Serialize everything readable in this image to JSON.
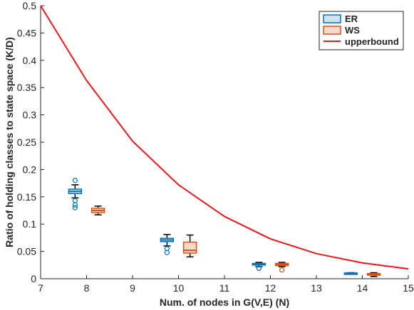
{
  "chart_data": {
    "type": "box+line",
    "xlabel": "Num. of nodes in G(V,E) (N)",
    "ylabel": "Ratio of holding classes to state space (K/D)",
    "xlim": [
      7,
      15
    ],
    "ylim": [
      0,
      0.5
    ],
    "xticks": [
      "7",
      "8",
      "9",
      "10",
      "11",
      "12",
      "13",
      "14",
      "15"
    ],
    "yticks": [
      "0",
      "0.05",
      "0.1",
      "0.15",
      "0.2",
      "0.25",
      "0.3",
      "0.35",
      "0.4",
      "0.45",
      "0.5"
    ],
    "grid": false,
    "legend_position": "top-right",
    "legend": [
      "ER",
      "WS",
      "upperbound"
    ],
    "colors": {
      "ER": "#0072BD",
      "ER_fill": "#CFE3F2",
      "WS": "#D95319",
      "WS_fill": "#F7D9CB",
      "upperbound": "#E6191C",
      "whisker": "#000000"
    },
    "box_series": [
      {
        "name": "ER",
        "boxes": [
          {
            "x": 7.75,
            "min": 0.148,
            "q1": 0.156,
            "median": 0.16,
            "q3": 0.164,
            "max": 0.172,
            "outliers": [
              0.18,
              0.143,
              0.135,
              0.13
            ]
          },
          {
            "x": 9.75,
            "min": 0.06,
            "q1": 0.068,
            "median": 0.071,
            "q3": 0.074,
            "max": 0.081,
            "outliers": [
              0.055,
              0.048
            ]
          },
          {
            "x": 11.75,
            "min": 0.022,
            "q1": 0.025,
            "median": 0.027,
            "q3": 0.028,
            "max": 0.03,
            "outliers": [
              0.019
            ]
          },
          {
            "x": 13.75,
            "min": 0.009,
            "q1": 0.0095,
            "median": 0.01,
            "q3": 0.0105,
            "max": 0.011,
            "outliers": []
          }
        ]
      },
      {
        "name": "WS",
        "boxes": [
          {
            "x": 8.25,
            "min": 0.117,
            "q1": 0.121,
            "median": 0.125,
            "q3": 0.129,
            "max": 0.133,
            "outliers": []
          },
          {
            "x": 10.25,
            "min": 0.04,
            "q1": 0.047,
            "median": 0.052,
            "q3": 0.067,
            "max": 0.08,
            "outliers": []
          },
          {
            "x": 12.25,
            "min": 0.022,
            "q1": 0.024,
            "median": 0.026,
            "q3": 0.028,
            "max": 0.03,
            "outliers": [
              0.016
            ]
          },
          {
            "x": 14.25,
            "min": 0.004,
            "q1": 0.0065,
            "median": 0.008,
            "q3": 0.0095,
            "max": 0.011,
            "outliers": []
          }
        ]
      }
    ],
    "line_series": [
      {
        "name": "upperbound",
        "x": [
          7,
          8,
          9,
          10,
          11,
          12,
          13,
          14,
          15
        ],
        "y": [
          0.5,
          0.363,
          0.252,
          0.172,
          0.114,
          0.073,
          0.046,
          0.029,
          0.018
        ]
      }
    ]
  }
}
